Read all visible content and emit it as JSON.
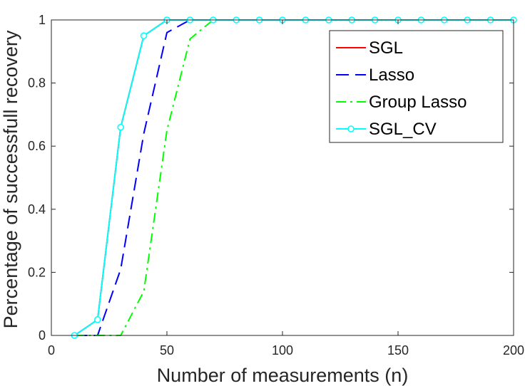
{
  "chart_data": {
    "type": "line",
    "xlabel": "Number of measurements (n)",
    "ylabel": "Percentage of successfull recovery",
    "xlim": [
      0,
      200
    ],
    "ylim": [
      0,
      1
    ],
    "xticks": [
      0,
      50,
      100,
      150,
      200
    ],
    "yticks": [
      0,
      0.2,
      0.4,
      0.6,
      0.8,
      1
    ],
    "xtick_labels": [
      "0",
      "50",
      "100",
      "150",
      "200"
    ],
    "ytick_labels": [
      "0",
      "0.2",
      "0.4",
      "0.6",
      "0.8",
      "1"
    ],
    "grid": false,
    "legend_position": "top-right",
    "x": [
      10,
      20,
      30,
      40,
      50,
      60,
      70,
      80,
      90,
      100,
      110,
      120,
      130,
      140,
      150,
      160,
      170,
      180,
      190,
      200
    ],
    "series": [
      {
        "name": "SGL",
        "color": "#ff0000",
        "style": "solid",
        "values": [
          0,
          0.05,
          0.66,
          0.95,
          1,
          1,
          1,
          1,
          1,
          1,
          1,
          1,
          1,
          1,
          1,
          1,
          1,
          1,
          1,
          1
        ]
      },
      {
        "name": "Lasso",
        "color": "#0000ff",
        "style": "dashed",
        "values": [
          0,
          0,
          0.21,
          0.64,
          0.96,
          1,
          1,
          1,
          1,
          1,
          1,
          1,
          1,
          1,
          1,
          1,
          1,
          1,
          1,
          1
        ]
      },
      {
        "name": "Group Lasso",
        "color": "#00ff00",
        "style": "dashdot",
        "values": [
          0,
          0,
          0,
          0.14,
          0.65,
          0.94,
          1,
          1,
          1,
          1,
          1,
          1,
          1,
          1,
          1,
          1,
          1,
          1,
          1,
          1
        ]
      },
      {
        "name": "SGL_CV",
        "color": "#00ffff",
        "style": "solid",
        "marker": "circle",
        "values": [
          0,
          0.05,
          0.66,
          0.95,
          1,
          1,
          1,
          1,
          1,
          1,
          1,
          1,
          1,
          1,
          1,
          1,
          1,
          1,
          1,
          1
        ]
      }
    ]
  }
}
